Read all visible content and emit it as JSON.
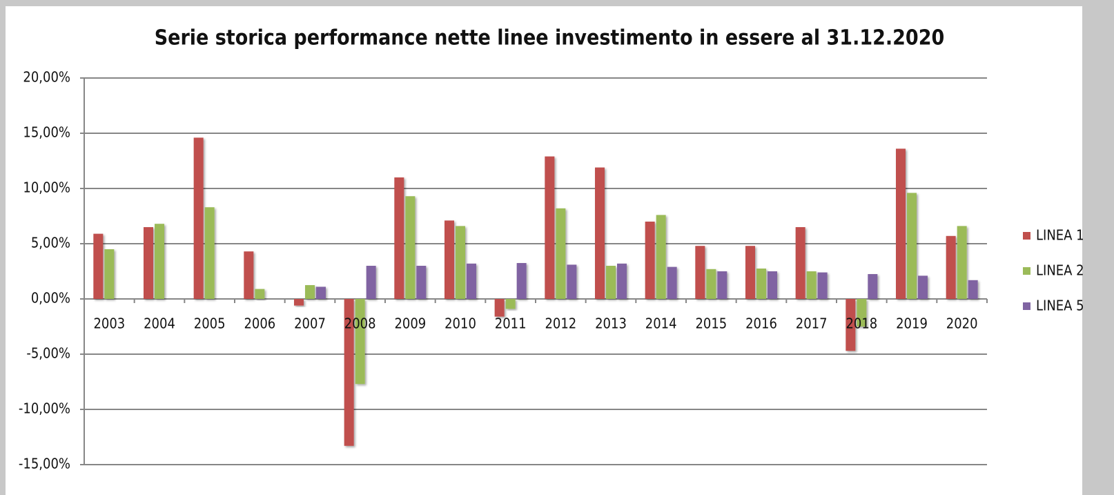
{
  "chart_data": {
    "type": "bar",
    "title": "Serie storica performance nette linee investimento in essere al 31.12.2020",
    "categories": [
      "2003",
      "2004",
      "2005",
      "2006",
      "2007",
      "2008",
      "2009",
      "2010",
      "2011",
      "2012",
      "2013",
      "2014",
      "2015",
      "2016",
      "2017",
      "2018",
      "2019",
      "2020"
    ],
    "series": [
      {
        "name": "LINEA 1",
        "color": "#c0504d",
        "values": [
          5.9,
          6.5,
          14.6,
          4.3,
          -0.6,
          -13.3,
          11.0,
          7.1,
          -1.6,
          12.9,
          11.9,
          7.0,
          4.8,
          4.8,
          6.5,
          -4.7,
          13.6,
          5.7
        ]
      },
      {
        "name": "LINEA 2",
        "color": "#9bbb59",
        "values": [
          4.5,
          6.8,
          8.3,
          0.9,
          1.25,
          -7.7,
          9.3,
          6.6,
          -0.9,
          8.2,
          3.0,
          7.6,
          2.7,
          2.75,
          2.5,
          -2.5,
          9.6,
          6.6
        ]
      },
      {
        "name": "LINEA 5",
        "color": "#8064a2",
        "values": [
          null,
          null,
          null,
          null,
          1.1,
          3.0,
          3.0,
          3.2,
          3.25,
          3.1,
          3.2,
          2.9,
          2.5,
          2.5,
          2.4,
          2.25,
          2.1,
          1.7
        ]
      }
    ],
    "ylim": [
      -15,
      20
    ],
    "yticks": [
      {
        "value": -15,
        "label": "-15,00%"
      },
      {
        "value": -10,
        "label": "-10,00%"
      },
      {
        "value": -5,
        "label": "-5,00%"
      },
      {
        "value": 0,
        "label": "0,00%"
      },
      {
        "value": 5,
        "label": "5,00%"
      },
      {
        "value": 10,
        "label": "10,00%"
      },
      {
        "value": 15,
        "label": "15,00%"
      },
      {
        "value": 20,
        "label": "20,00%"
      }
    ],
    "grid": true,
    "legend": "right"
  }
}
